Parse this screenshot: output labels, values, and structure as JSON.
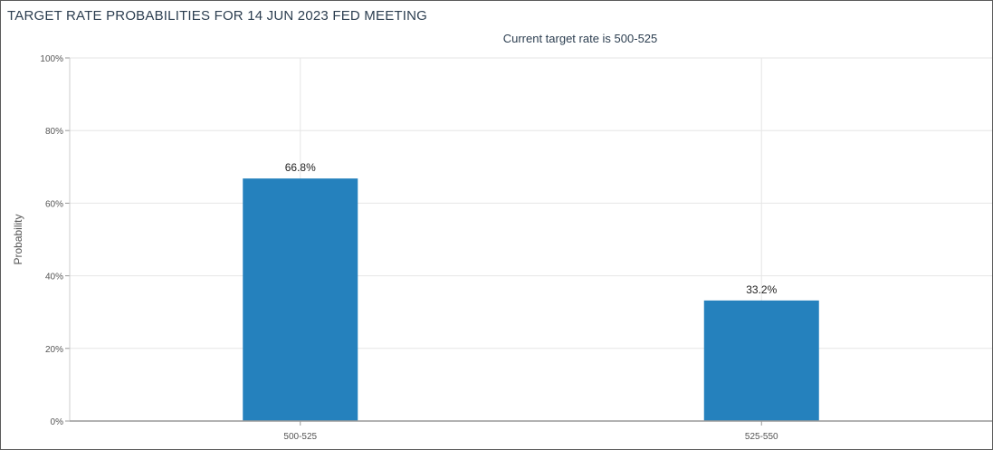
{
  "chart_data": {
    "type": "bar",
    "title": "TARGET RATE PROBABILITIES FOR 14 JUN 2023 FED MEETING",
    "subtitle": "Current target rate is 500-525",
    "xlabel": "",
    "ylabel": "Probability",
    "categories": [
      "500-525",
      "525-550"
    ],
    "values": [
      66.8,
      33.2
    ],
    "data_labels": [
      "66.8%",
      "33.2%"
    ],
    "ylim": [
      0,
      100
    ],
    "yticks": [
      0,
      20,
      40,
      60,
      80,
      100
    ],
    "ytick_labels": [
      "0%",
      "20%",
      "40%",
      "60%",
      "80%",
      "100%"
    ],
    "grid": true,
    "legend": "none",
    "bar_color": "#2581bd"
  }
}
